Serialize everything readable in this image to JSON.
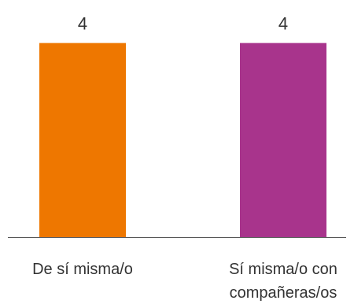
{
  "chart_data": {
    "type": "bar",
    "categories": [
      "De sí misma/o",
      "Sí misma/o con compañeras/os"
    ],
    "category_lines": [
      [
        "De sí misma/o"
      ],
      [
        "Sí misma/o con",
        "compañeras/os"
      ]
    ],
    "values": [
      4,
      4
    ],
    "value_labels": [
      "4",
      "4"
    ],
    "colors": [
      "#ee7700",
      "#a8348c"
    ],
    "axis_color": "#555555",
    "ylim": [
      0,
      4.4
    ],
    "grid": false,
    "legend": "none",
    "title": "",
    "xlabel": "",
    "ylabel": ""
  }
}
